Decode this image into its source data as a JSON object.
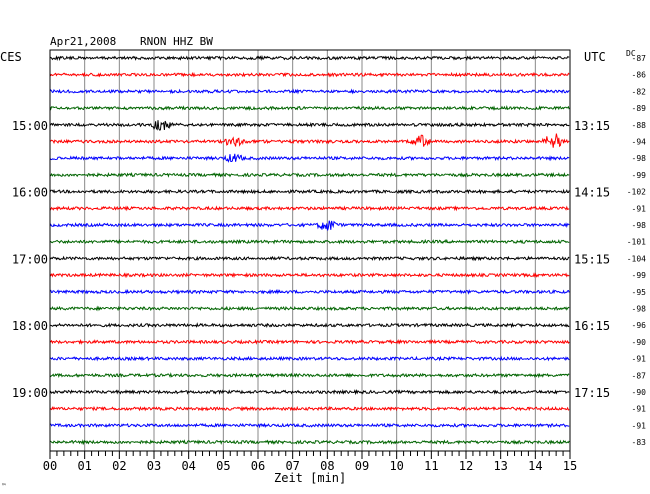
{
  "chart_data": {
    "type": "seismogram",
    "header": {
      "date": "Apr21,2008",
      "station": "RNON HHZ BW"
    },
    "left_zone": "CES",
    "right_zone": "UTC",
    "dc_label": "DC",
    "xlabel": "Zeit [min]",
    "x_ticks": [
      "00",
      "01",
      "02",
      "03",
      "04",
      "05",
      "06",
      "07",
      "08",
      "09",
      "10",
      "11",
      "12",
      "13",
      "14",
      "15"
    ],
    "xlim": [
      0,
      15
    ],
    "left_hour_labels": [
      {
        "row": 4,
        "text": "15:00"
      },
      {
        "row": 8,
        "text": "16:00"
      },
      {
        "row": 12,
        "text": "17:00"
      },
      {
        "row": 16,
        "text": "18:00"
      },
      {
        "row": 20,
        "text": "19:00"
      }
    ],
    "right_time_labels": [
      {
        "row": 4,
        "text": "13:15"
      },
      {
        "row": 8,
        "text": "14:15"
      },
      {
        "row": 12,
        "text": "15:15"
      },
      {
        "row": 16,
        "text": "16:15"
      },
      {
        "row": 20,
        "text": "17:15"
      }
    ],
    "dc_offsets": [
      -87,
      -86,
      -82,
      -89,
      -88,
      -94,
      -98,
      -99,
      -102,
      -91,
      -98,
      -101,
      -104,
      -99,
      -95,
      -98,
      -96,
      -90,
      -91,
      -87,
      -90,
      -91,
      -91,
      -83
    ],
    "trace_colors": [
      "#000000",
      "#ff0000",
      "#0000ff",
      "#006400"
    ],
    "events": [
      {
        "row": 4,
        "minute": 3.2,
        "amplitude": 6
      },
      {
        "row": 5,
        "minute": 5.3,
        "amplitude": 5
      },
      {
        "row": 5,
        "minute": 10.7,
        "amplitude": 6
      },
      {
        "row": 5,
        "minute": 14.5,
        "amplitude": 10
      },
      {
        "row": 6,
        "minute": 5.3,
        "amplitude": 4
      },
      {
        "row": 10,
        "minute": 8.0,
        "amplitude": 6
      }
    ],
    "footnote": "™"
  }
}
